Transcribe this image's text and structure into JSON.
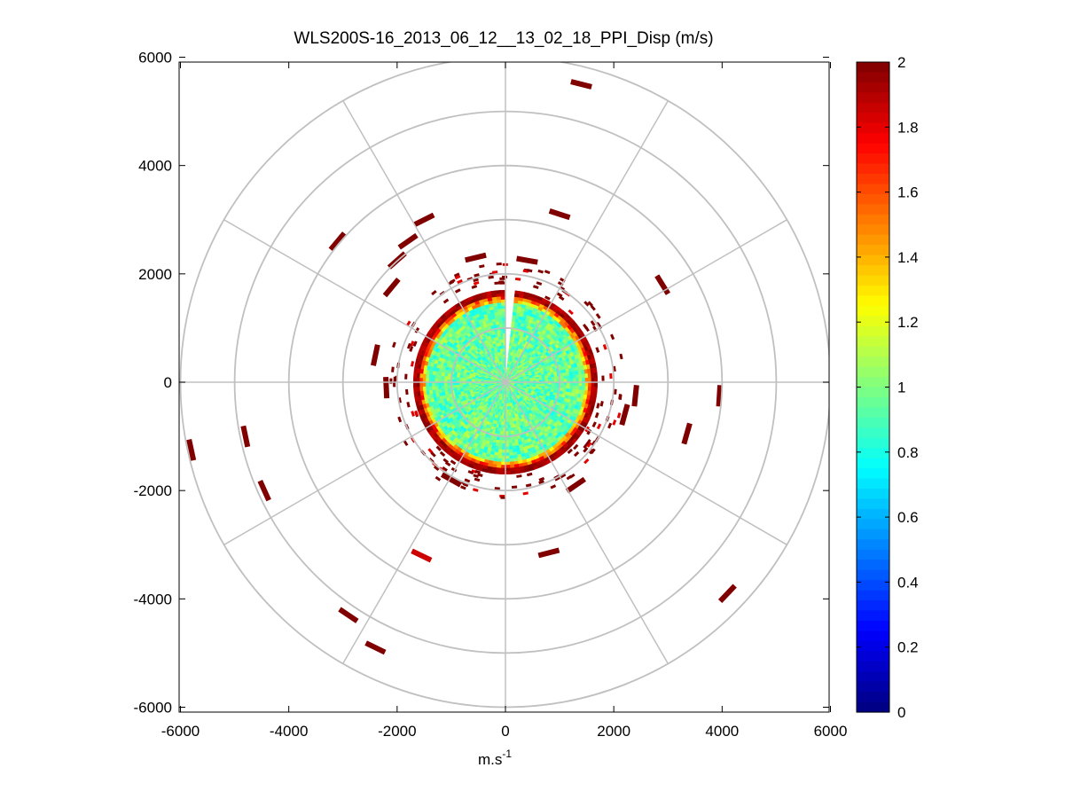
{
  "chart_data": {
    "type": "heatmap",
    "subtype": "polar-ppi",
    "title": "WLS200S-16_2013_06_12__13_02_18_PPI_Disp (m/s)",
    "xlabel": "m.s",
    "xlabel_superscript": "-1",
    "ylabel": "",
    "xlim": [
      -6000,
      6000
    ],
    "ylim": [
      -6000,
      6000
    ],
    "x_ticks": [
      "-6000",
      "-4000",
      "-2000",
      "0",
      "2000",
      "4000",
      "6000"
    ],
    "y_ticks": [
      "6000",
      "4000",
      "2000",
      "0",
      "-2000",
      "-4000",
      "-6000"
    ],
    "polar_grid": {
      "rings": [
        1000,
        2000,
        3000,
        4000,
        5000,
        6000
      ],
      "spoke_angles_deg": [
        0,
        30,
        60,
        90,
        120,
        150,
        180,
        210,
        240,
        270,
        300,
        330
      ],
      "color": "#c0c0c0"
    },
    "colorbar": {
      "colormap": "jet",
      "min": 0,
      "max": 2,
      "ticks": [
        "2",
        "1.8",
        "1.6",
        "1.4",
        "1.2",
        "1",
        "0.8",
        "0.6",
        "0.4",
        "0.2",
        "0"
      ]
    },
    "inner_field": {
      "radius_m": 1700,
      "dominant_value": 0.95,
      "edge_value": 2.0,
      "gap_bearing_deg": 5
    },
    "scattered_returns": [
      {
        "x": 1400,
        "y": 5500,
        "value": 2.0
      },
      {
        "x": 1000,
        "y": 3100,
        "value": 2.0
      },
      {
        "x": 2900,
        "y": 1800,
        "value": 2.0
      },
      {
        "x": -1500,
        "y": 3000,
        "value": 2.0
      },
      {
        "x": -3100,
        "y": 2600,
        "value": 2.0
      },
      {
        "x": -1800,
        "y": 2600,
        "value": 2.0
      },
      {
        "x": -2000,
        "y": 2250,
        "value": 2.0
      },
      {
        "x": -2100,
        "y": 1750,
        "value": 2.0
      },
      {
        "x": -550,
        "y": 2300,
        "value": 2.0
      },
      {
        "x": 400,
        "y": 2250,
        "value": 2.0
      },
      {
        "x": -2400,
        "y": 500,
        "value": 2.0
      },
      {
        "x": 3950,
        "y": -250,
        "value": 2.0
      },
      {
        "x": 3350,
        "y": -950,
        "value": 2.0
      },
      {
        "x": -5800,
        "y": -1250,
        "value": 2.0
      },
      {
        "x": -4800,
        "y": -1000,
        "value": 2.0
      },
      {
        "x": -4450,
        "y": -2000,
        "value": 2.0
      },
      {
        "x": -1550,
        "y": -3200,
        "value": 1.85
      },
      {
        "x": 800,
        "y": -3150,
        "value": 2.0
      },
      {
        "x": 4100,
        "y": -3900,
        "value": 2.0
      },
      {
        "x": -2900,
        "y": -4300,
        "value": 2.0
      },
      {
        "x": -2400,
        "y": -4900,
        "value": 2.0
      },
      {
        "x": 2400,
        "y": -250,
        "value": 2.0
      },
      {
        "x": 2200,
        "y": -600,
        "value": 2.0
      },
      {
        "x": -2200,
        "y": -100,
        "value": 2.0
      },
      {
        "x": -1000,
        "y": -1800,
        "value": 2.0
      },
      {
        "x": 1300,
        "y": -1900,
        "value": 2.0
      }
    ]
  }
}
